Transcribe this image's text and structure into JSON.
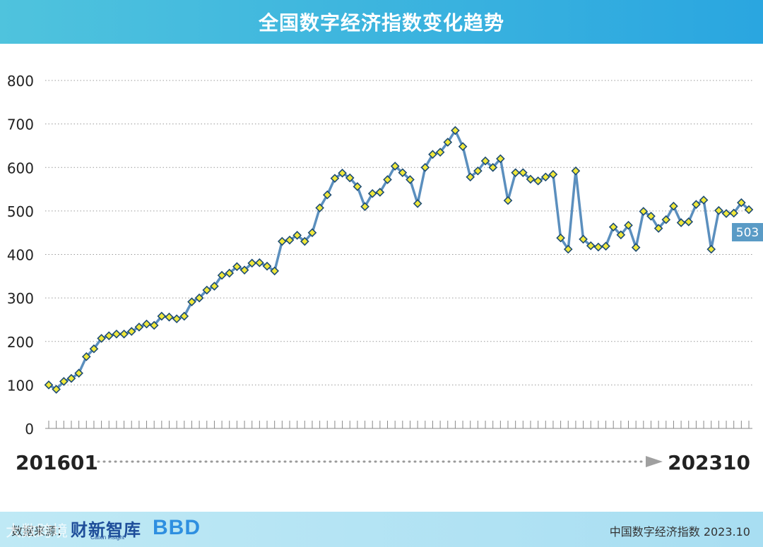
{
  "header": {
    "title": "全国数字经济指数变化趋势"
  },
  "chart_data": {
    "type": "line",
    "title": "全国数字经济指数变化趋势",
    "xlabel": "",
    "ylabel": "",
    "ylim": [
      0,
      800
    ],
    "yticks": [
      "0",
      "100",
      "200",
      "300",
      "400",
      "500",
      "600",
      "700",
      "800"
    ],
    "grid": true,
    "x_start_label": "201601",
    "x_end_label": "202310",
    "last_value_label": "503",
    "series": [
      {
        "values": [
          100,
          90,
          108,
          115,
          127,
          165,
          183,
          207,
          213,
          217,
          217,
          223,
          233,
          240,
          237,
          258,
          256,
          252,
          258,
          291,
          300,
          318,
          327,
          352,
          357,
          372,
          364,
          380,
          381,
          373,
          362,
          430,
          433,
          444,
          430,
          450,
          507,
          537,
          575,
          587,
          576,
          556,
          510,
          540,
          543,
          572,
          603,
          588,
          572,
          517,
          600,
          630,
          635,
          658,
          685,
          648,
          578,
          592,
          615,
          600,
          620,
          524,
          588,
          588,
          573,
          569,
          578,
          584,
          438,
          412,
          592,
          435,
          420,
          417,
          419,
          463,
          445,
          467,
          416,
          499,
          488,
          460,
          480,
          511,
          473,
          475,
          515,
          525,
          412,
          501,
          494,
          495,
          519,
          503
        ]
      }
    ],
    "colors": {
      "line": "#5b8fbe",
      "marker_fill": "#f0e83a",
      "marker_stroke": "#1e4c73",
      "label_bg": "#5a9bc6"
    }
  },
  "footer": {
    "source_label": "数据来源：",
    "logo1": "财新智库",
    "logo1_sub": "Caixin Insight",
    "logo2": "BBD",
    "right_text": "中国数字经济指数 2023.10"
  },
  "watermark": "大数跨境"
}
